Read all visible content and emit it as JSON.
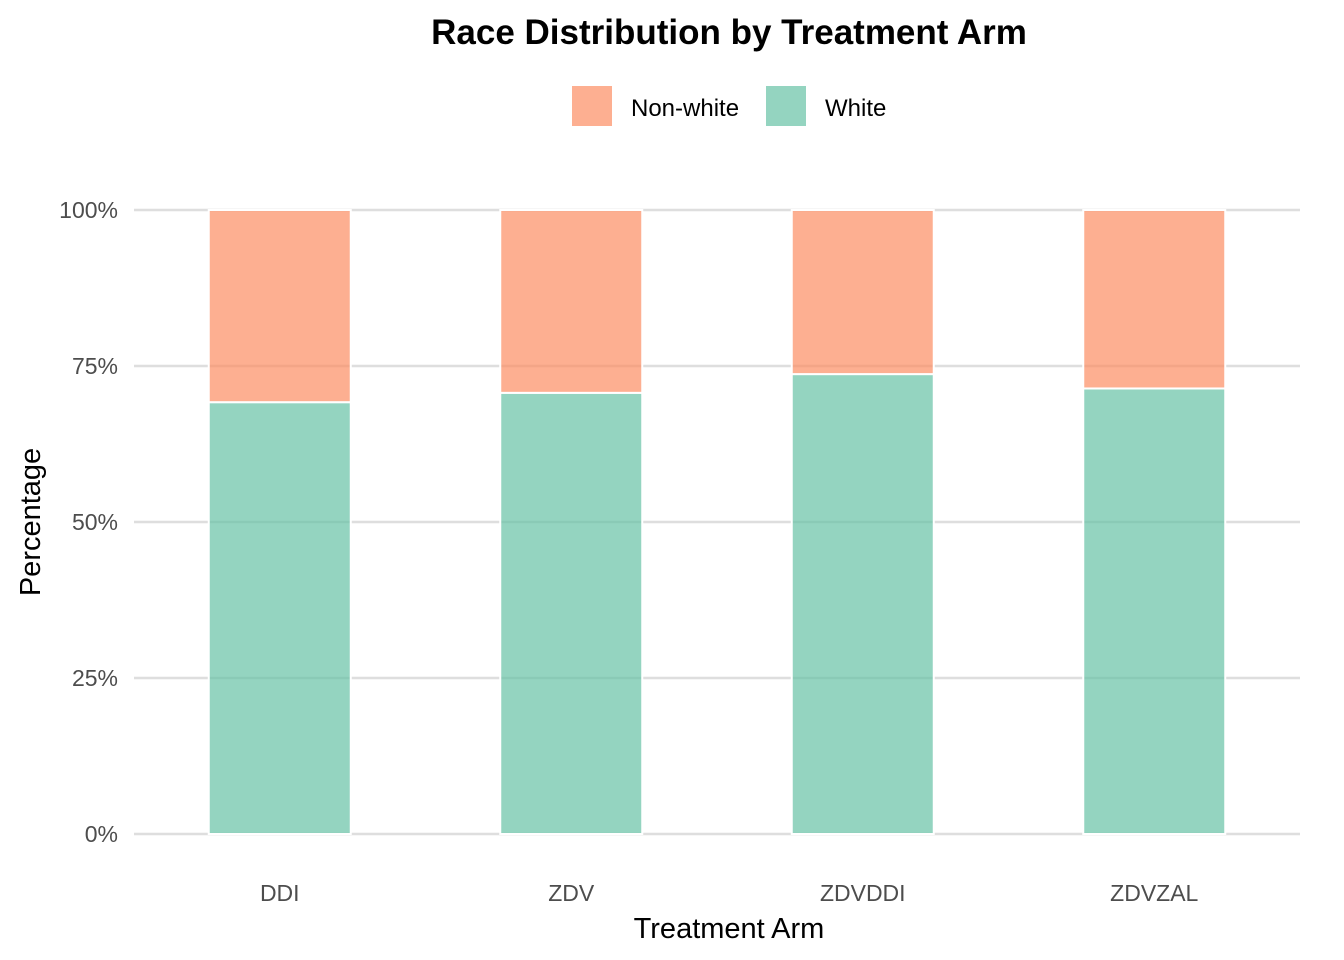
{
  "chart_data": {
    "type": "bar",
    "stacked": true,
    "title": "Race Distribution by Treatment Arm",
    "xlabel": "Treatment Arm",
    "ylabel": "Percentage",
    "categories": [
      "DDI",
      "ZDV",
      "ZDVDDI",
      "ZDVZAL"
    ],
    "series": [
      {
        "name": "White",
        "color": "#66c2a5",
        "values": [
          69.2,
          70.7,
          73.7,
          71.4
        ]
      },
      {
        "name": "Non-white",
        "color": "#fc8d62",
        "values": [
          30.8,
          29.3,
          26.3,
          28.6
        ]
      }
    ],
    "legend_order": [
      "Non-white",
      "White"
    ],
    "legend_position": "top",
    "ylim": [
      0,
      100
    ],
    "yticks": [
      0,
      25,
      50,
      75,
      100
    ],
    "ytick_labels": [
      "0%",
      "25%",
      "50%",
      "75%",
      "100%"
    ],
    "grid": true,
    "bar_opacity": 0.7
  }
}
